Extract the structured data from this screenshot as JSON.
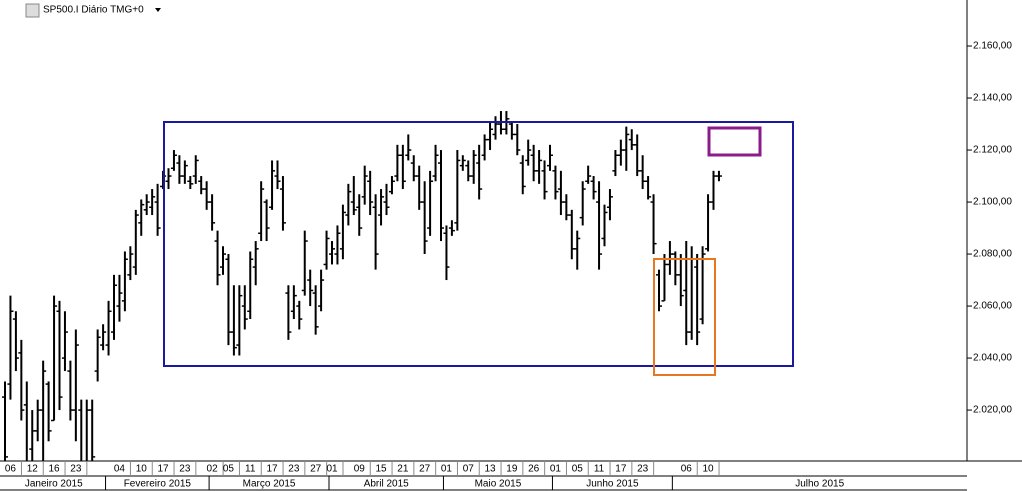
{
  "chart_data": {
    "type": "ohlc",
    "title": "SP500.I Diário TMG+0",
    "color": "#000000",
    "open": [
      2025,
      2030,
      2055,
      2042,
      2022,
      2005,
      2012,
      2020,
      2030,
      2016,
      2058,
      2040,
      2035,
      2020,
      2020,
      2000,
      2020,
      2035,
      2045,
      2045,
      2050,
      2060,
      2062,
      2072,
      2075,
      2092,
      2097,
      2098,
      2100,
      2106,
      2108,
      2113,
      2115,
      2110,
      2108,
      2110,
      2108,
      2105,
      2100,
      2085,
      2075,
      2078,
      2050,
      2045,
      2060,
      2058,
      2075,
      2088,
      2100,
      2098,
      2110,
      2105,
      2065,
      2058,
      2060,
      2066,
      2070,
      2065,
      2060,
      2076,
      2080,
      2080,
      2082,
      2095,
      2100,
      2098,
      2102,
      2108,
      2098,
      2095,
      2100,
      2104,
      2110,
      2118,
      2118,
      2115,
      2110,
      2100,
      2090,
      2110,
      2115,
      2088,
      2090,
      2092,
      2114,
      2114,
      2110,
      2115,
      2118,
      2124,
      2126,
      2130,
      2128,
      2130,
      2126,
      2115,
      2116,
      2118,
      2112,
      2112,
      2114,
      2112,
      2105,
      2100,
      2095,
      2082,
      2094,
      2108,
      2108,
      2100,
      2086,
      2098,
      2112,
      2118,
      2120,
      2124,
      2122,
      2112,
      2108,
      2100,
      2072,
      2062,
      2076,
      2080,
      2072,
      2066,
      2050,
      2075,
      2055,
      2082,
      2100,
      2110
    ],
    "high": [
      2031,
      2064,
      2058,
      2047,
      2031,
      2020,
      2024,
      2039,
      2031,
      2064,
      2062,
      2058,
      2039,
      2051,
      2024,
      2024,
      2024,
      2051,
      2053,
      2062,
      2072,
      2072,
      2081,
      2083,
      2097,
      2101,
      2103,
      2105,
      2107,
      2112,
      2113,
      2120,
      2118,
      2116,
      2110,
      2118,
      2110,
      2108,
      2103,
      2089,
      2083,
      2080,
      2068,
      2068,
      2068,
      2081,
      2085,
      2108,
      2101,
      2116,
      2116,
      2110,
      2068,
      2068,
      2062,
      2089,
      2074,
      2068,
      2074,
      2089,
      2085,
      2091,
      2099,
      2107,
      2110,
      2103,
      2114,
      2112,
      2103,
      2105,
      2107,
      2110,
      2122,
      2122,
      2126,
      2118,
      2114,
      2108,
      2112,
      2122,
      2120,
      2091,
      2093,
      2120,
      2118,
      2116,
      2120,
      2122,
      2126,
      2131,
      2133,
      2135,
      2135,
      2131,
      2130,
      2118,
      2124,
      2122,
      2120,
      2116,
      2122,
      2114,
      2112,
      2103,
      2097,
      2089,
      2108,
      2114,
      2110,
      2108,
      2099,
      2105,
      2120,
      2124,
      2129,
      2128,
      2126,
      2118,
      2110,
      2103,
      2074,
      2080,
      2085,
      2081,
      2080,
      2085,
      2083,
      2080,
      2083,
      2103,
      2112,
      2112
    ],
    "low": [
      1997,
      2024,
      2035,
      2016,
      1997,
      1997,
      2008,
      1997,
      2008,
      2016,
      2020,
      2035,
      2016,
      2008,
      1997,
      1997,
      1997,
      2031,
      2043,
      2041,
      2047,
      2054,
      2058,
      2070,
      2072,
      2087,
      2095,
      2095,
      2087,
      2105,
      2105,
      2112,
      2107,
      2107,
      2105,
      2107,
      2103,
      2097,
      2089,
      2068,
      2072,
      2045,
      2041,
      2041,
      2051,
      2055,
      2068,
      2085,
      2085,
      2097,
      2105,
      2089,
      2047,
      2055,
      2051,
      2064,
      2060,
      2049,
      2058,
      2074,
      2076,
      2076,
      2078,
      2091,
      2095,
      2087,
      2099,
      2095,
      2074,
      2091,
      2095,
      2103,
      2108,
      2105,
      2116,
      2108,
      2097,
      2080,
      2087,
      2108,
      2085,
      2070,
      2087,
      2089,
      2112,
      2108,
      2107,
      2101,
      2116,
      2120,
      2124,
      2126,
      2126,
      2124,
      2118,
      2103,
      2114,
      2108,
      2107,
      2101,
      2112,
      2101,
      2095,
      2093,
      2078,
      2074,
      2091,
      2107,
      2101,
      2074,
      2083,
      2093,
      2110,
      2114,
      2112,
      2120,
      2110,
      2105,
      2101,
      2080,
      2058,
      2062,
      2072,
      2068,
      2060,
      2045,
      2047,
      2045,
      2053,
      2081,
      2097,
      2108
    ],
    "close": [
      2002,
      2058,
      2040,
      2020,
      2000,
      2012,
      2020,
      2035,
      2012,
      2060,
      2025,
      2050,
      2020,
      2045,
      2000,
      2020,
      2002,
      2048,
      2050,
      2058,
      2068,
      2065,
      2078,
      2080,
      2095,
      2099,
      2100,
      2102,
      2090,
      2110,
      2110,
      2118,
      2110,
      2114,
      2107,
      2116,
      2105,
      2100,
      2092,
      2072,
      2080,
      2050,
      2044,
      2064,
      2055,
      2078,
      2082,
      2105,
      2090,
      2112,
      2108,
      2092,
      2050,
      2064,
      2055,
      2085,
      2066,
      2052,
      2070,
      2086,
      2082,
      2088,
      2096,
      2104,
      2097,
      2090,
      2110,
      2100,
      2080,
      2102,
      2098,
      2108,
      2118,
      2108,
      2120,
      2110,
      2100,
      2085,
      2108,
      2118,
      2090,
      2075,
      2089,
      2116,
      2116,
      2110,
      2118,
      2105,
      2124,
      2128,
      2130,
      2128,
      2132,
      2126,
      2120,
      2106,
      2120,
      2112,
      2116,
      2104,
      2118,
      2104,
      2100,
      2095,
      2082,
      2086,
      2105,
      2110,
      2104,
      2080,
      2096,
      2102,
      2118,
      2120,
      2126,
      2122,
      2112,
      2108,
      2102,
      2084,
      2060,
      2076,
      2080,
      2072,
      2064,
      2050,
      2078,
      2050,
      2080,
      2100,
      2110,
      2110
    ],
    "ylim": [
      2000.8,
      2177.7
    ],
    "yticks": [
      {
        "value": 2020,
        "label": "2.020,00"
      },
      {
        "value": 2040,
        "label": "2.040,00"
      },
      {
        "value": 2060,
        "label": "2.060,00"
      },
      {
        "value": 2080,
        "label": "2.080,00"
      },
      {
        "value": 2100,
        "label": "2.100,00"
      },
      {
        "value": 2120,
        "label": "2.120,00"
      },
      {
        "value": 2140,
        "label": "2.140,00"
      },
      {
        "value": 2160,
        "label": "2.160,00"
      }
    ],
    "xticks": [
      {
        "value": 1,
        "label": "06"
      },
      {
        "value": 5,
        "label": "12"
      },
      {
        "value": 9,
        "label": "16"
      },
      {
        "value": 13,
        "label": "23"
      },
      {
        "value": 21,
        "label": "04"
      },
      {
        "value": 25,
        "label": "10"
      },
      {
        "value": 29,
        "label": "17"
      },
      {
        "value": 33,
        "label": "23"
      },
      {
        "value": 38,
        "label": "02"
      },
      {
        "value": 41,
        "label": "05"
      },
      {
        "value": 45,
        "label": "11"
      },
      {
        "value": 49,
        "label": "17"
      },
      {
        "value": 53,
        "label": "23"
      },
      {
        "value": 57,
        "label": "27"
      },
      {
        "value": 60,
        "label": "01"
      },
      {
        "value": 65,
        "label": "09"
      },
      {
        "value": 69,
        "label": "15"
      },
      {
        "value": 73,
        "label": "21"
      },
      {
        "value": 77,
        "label": "27"
      },
      {
        "value": 81,
        "label": "01"
      },
      {
        "value": 85,
        "label": "07"
      },
      {
        "value": 89,
        "label": "13"
      },
      {
        "value": 93,
        "label": "19"
      },
      {
        "value": 97,
        "label": "26"
      },
      {
        "value": 101,
        "label": "01"
      },
      {
        "value": 105,
        "label": "05"
      },
      {
        "value": 109,
        "label": "11"
      },
      {
        "value": 113,
        "label": "17"
      },
      {
        "value": 117,
        "label": "23"
      },
      {
        "value": 125,
        "label": "06"
      },
      {
        "value": 129,
        "label": "10"
      }
    ],
    "months": [
      {
        "value": 0,
        "label": "Janeiro 2015"
      },
      {
        "value": 19,
        "label": "Fevereiro 2015"
      },
      {
        "value": 38,
        "label": "Março 2015"
      },
      {
        "value": 60,
        "label": "Abril 2015"
      },
      {
        "value": 81,
        "label": "Maio 2015"
      },
      {
        "value": 101,
        "label": "Junho 2015"
      },
      {
        "value": 123,
        "label": "Julho 2015"
      }
    ]
  }
}
